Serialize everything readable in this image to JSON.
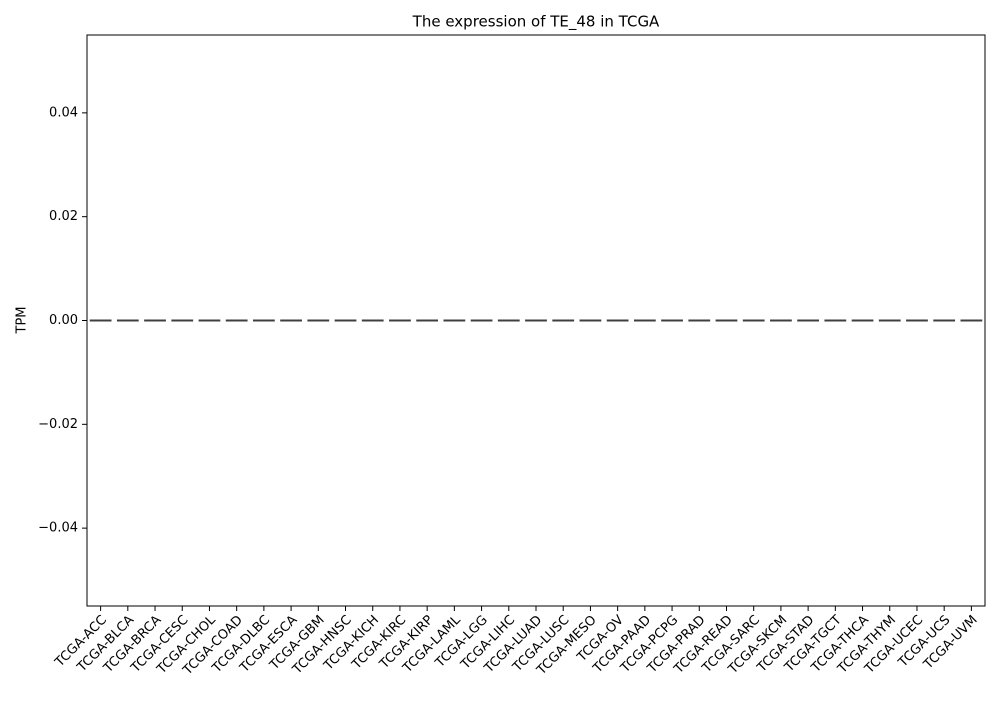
{
  "chart_data": {
    "type": "box",
    "title": "The expression of TE_48 in TCGA",
    "y_label": "TPM",
    "categories": [
      "TCGA-ACC",
      "TCGA-BLCA",
      "TCGA-BRCA",
      "TCGA-CESC",
      "TCGA-CHOL",
      "TCGA-COAD",
      "TCGA-DLBC",
      "TCGA-ESCA",
      "TCGA-GBM",
      "TCGA-HNSC",
      "TCGA-KICH",
      "TCGA-KIRC",
      "TCGA-KIRP",
      "TCGA-LAML",
      "TCGA-LGG",
      "TCGA-LIHC",
      "TCGA-LUAD",
      "TCGA-LUSC",
      "TCGA-MESO",
      "TCGA-OV",
      "TCGA-PAAD",
      "TCGA-PCPG",
      "TCGA-PRAD",
      "TCGA-READ",
      "TCGA-SARC",
      "TCGA-SKCM",
      "TCGA-STAD",
      "TCGA-TGCT",
      "TCGA-THCA",
      "TCGA-THYM",
      "TCGA-UCEC",
      "TCGA-UCS",
      "TCGA-UVM"
    ],
    "median": [
      0,
      0,
      0,
      0,
      0,
      0,
      0,
      0,
      0,
      0,
      0,
      0,
      0,
      0,
      0,
      0,
      0,
      0,
      0,
      0,
      0,
      0,
      0,
      0,
      0,
      0,
      0,
      0,
      0,
      0,
      0,
      0,
      0
    ],
    "color": "#3f3f3f",
    "ylim": [
      -0.055,
      0.055
    ],
    "yticks": [
      {
        "value": -0.04,
        "label": "−0.04"
      },
      {
        "value": -0.02,
        "label": "−0.02"
      },
      {
        "value": 0,
        "label": "0.00"
      },
      0.02,
      0.04
    ]
  }
}
